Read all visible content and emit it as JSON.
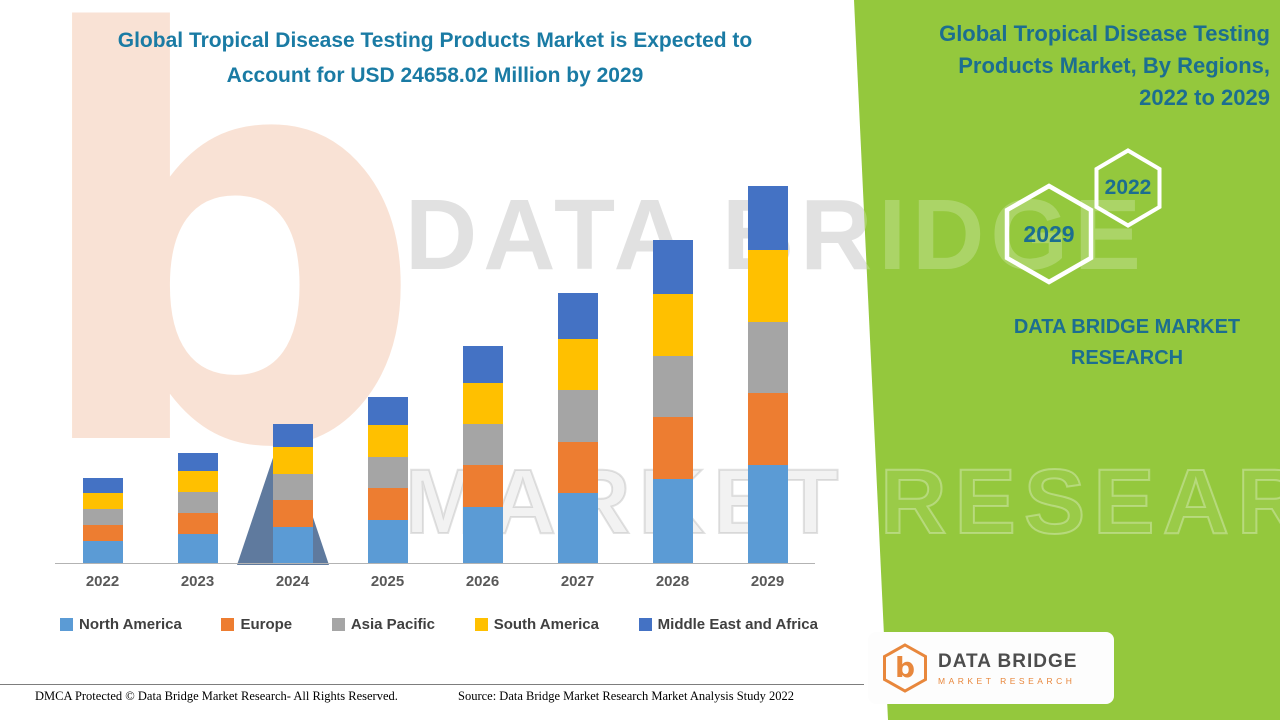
{
  "left": {
    "title_lines": [
      "Global Tropical Disease Testing Products Market is Expected to",
      "Account for USD 24658.02 Million by 2029"
    ]
  },
  "chart_data": {
    "type": "bar",
    "stacked": true,
    "title": "Global Tropical Disease Testing Products Market is Expected to Account for USD 24658.02 Million by 2029",
    "unit": "USD Million",
    "categories": [
      "2022",
      "2023",
      "2024",
      "2025",
      "2026",
      "2027",
      "2028",
      "2029"
    ],
    "series": [
      {
        "name": "North America",
        "color": "#5B9BD5",
        "values": [
          1430,
          1870,
          2360,
          2820,
          3690,
          4590,
          5500,
          6410
        ]
      },
      {
        "name": "Europe",
        "color": "#ED7D31",
        "values": [
          1050,
          1370,
          1730,
          2060,
          2700,
          3350,
          4020,
          4690
        ]
      },
      {
        "name": "Asia Pacific",
        "color": "#A5A5A5",
        "values": [
          1050,
          1370,
          1730,
          2060,
          2700,
          3350,
          4020,
          4690
        ]
      },
      {
        "name": "South America",
        "color": "#FFC000",
        "values": [
          1050,
          1370,
          1730,
          2060,
          2700,
          3350,
          4020,
          4690
        ]
      },
      {
        "name": "Middle East and Africa",
        "color": "#4472C4",
        "values": [
          940,
          1220,
          1540,
          1840,
          2420,
          3010,
          3590,
          4180
        ]
      }
    ],
    "total_2029": 24658.02,
    "ylim": [
      0,
      27000
    ],
    "grid": false,
    "y_axis_visible": false,
    "legend_position": "bottom"
  },
  "right_panel": {
    "bg_color": "#94C83D",
    "title_lines": [
      "Global Tropical Disease Testing",
      "Products Market, By Regions,",
      "2022 to 2029"
    ],
    "hex_back_year": "2029",
    "hex_front_year": "2022",
    "brand_lines": [
      "DATA BRIDGE MARKET",
      "RESEARCH"
    ]
  },
  "footer": {
    "dmca": "DMCA Protected © Data Bridge Market Research- All Rights Reserved.",
    "source": "Source: Data Bridge Market Research Market Analysis Study 2022"
  },
  "logo": {
    "letter": "b",
    "name": "DATA BRIDGE",
    "subtitle": "MARKET RESEARCH"
  },
  "watermark": {
    "logo_letter": "b",
    "line1": "DATA BRIDGE",
    "line2": "MARKET RESEARCH"
  }
}
